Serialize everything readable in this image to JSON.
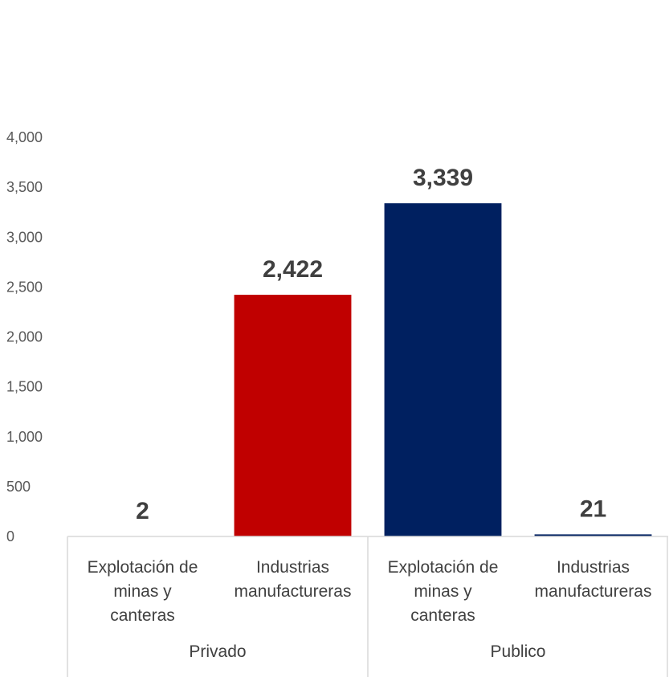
{
  "chart_data": {
    "type": "bar",
    "ylim": [
      0,
      4000
    ],
    "yticks": [
      0,
      500,
      1000,
      1500,
      2000,
      2500,
      3000,
      3500,
      4000
    ],
    "ytick_labels": [
      "0",
      "500",
      "1,000",
      "1,500",
      "2,000",
      "2,500",
      "3,000",
      "3,500",
      "4,000"
    ],
    "grid": false,
    "groups": [
      {
        "label": "Privado",
        "categories": [
          {
            "label_lines": [
              "Explotación de",
              "minas y",
              "canteras"
            ],
            "value": 2,
            "value_label": "2",
            "color": "#C00000"
          },
          {
            "label_lines": [
              "Industrias",
              "manufactureras"
            ],
            "value": 2422,
            "value_label": "2,422",
            "color": "#C00000"
          }
        ]
      },
      {
        "label": "Publico",
        "categories": [
          {
            "label_lines": [
              "Explotación de",
              "minas y",
              "canteras"
            ],
            "value": 3339,
            "value_label": "3,339",
            "color": "#002060"
          },
          {
            "label_lines": [
              "Industrias",
              "manufactureras"
            ],
            "value": 21,
            "value_label": "21",
            "color": "#002060"
          }
        ]
      }
    ]
  }
}
